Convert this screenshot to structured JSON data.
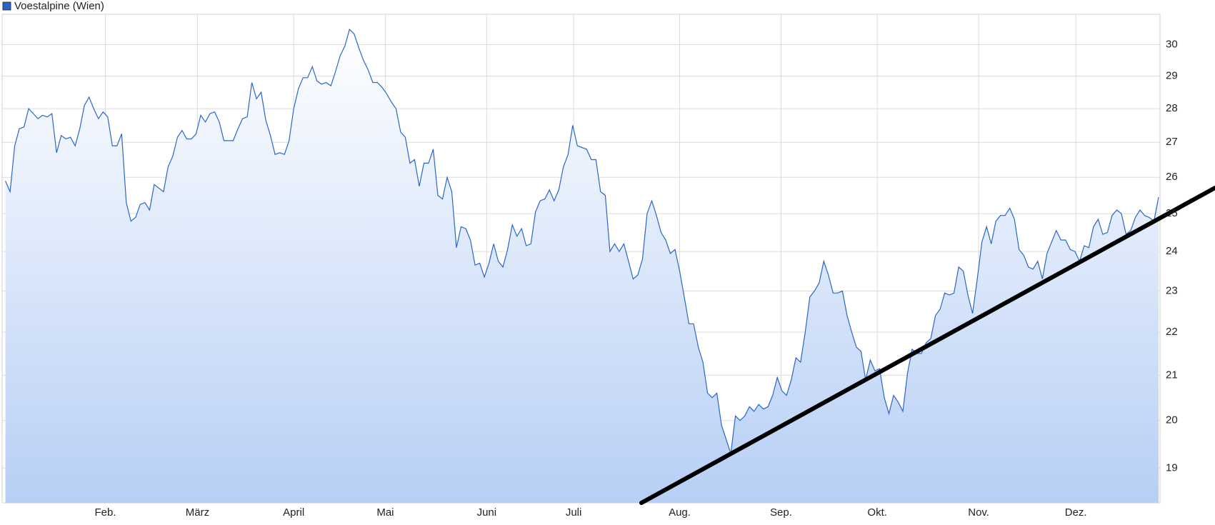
{
  "chart_data": {
    "type": "line",
    "series": [
      {
        "name": "Voestalpine (Wien)",
        "color": "#2a66c8",
        "values": [
          25.9,
          25.6,
          26.9,
          27.4,
          27.45,
          28.0,
          27.85,
          27.7,
          27.8,
          27.75,
          27.85,
          26.7,
          27.2,
          27.1,
          27.15,
          26.9,
          27.4,
          28.1,
          28.35,
          28.0,
          27.7,
          27.9,
          27.75,
          26.9,
          26.9,
          27.25,
          25.3,
          24.8,
          24.9,
          25.25,
          25.3,
          25.1,
          25.8,
          25.7,
          25.6,
          26.3,
          26.6,
          27.15,
          27.35,
          27.1,
          27.1,
          27.25,
          27.8,
          27.6,
          27.85,
          27.9,
          27.6,
          27.05,
          27.05,
          27.05,
          27.4,
          27.7,
          27.75,
          28.8,
          28.3,
          28.5,
          27.65,
          27.2,
          26.65,
          26.7,
          26.65,
          27.05,
          28.0,
          28.6,
          28.95,
          28.95,
          29.3,
          28.85,
          28.75,
          28.8,
          28.7,
          29.15,
          29.65,
          29.95,
          30.5,
          30.35,
          29.9,
          29.5,
          29.2,
          28.8,
          28.8,
          28.65,
          28.45,
          28.2,
          28.0,
          27.3,
          27.15,
          26.4,
          26.5,
          25.75,
          26.4,
          26.4,
          26.8,
          25.5,
          25.4,
          26.0,
          25.6,
          24.1,
          24.65,
          24.6,
          24.3,
          23.65,
          23.7,
          23.35,
          23.7,
          24.2,
          23.75,
          23.6,
          24.05,
          24.7,
          24.4,
          24.6,
          24.15,
          24.2,
          25.05,
          25.35,
          25.4,
          25.65,
          25.35,
          25.65,
          26.3,
          26.65,
          27.5,
          26.9,
          26.85,
          26.8,
          26.5,
          26.5,
          25.6,
          25.5,
          24.0,
          24.2,
          24.0,
          24.2,
          23.75,
          23.3,
          23.4,
          23.8,
          25.0,
          25.35,
          24.95,
          24.5,
          24.3,
          23.95,
          24.05,
          23.5,
          22.85,
          22.2,
          22.2,
          21.65,
          21.3,
          20.6,
          20.5,
          20.6,
          19.9,
          19.6,
          19.3,
          20.1,
          20.0,
          20.1,
          20.3,
          20.2,
          20.35,
          20.25,
          20.3,
          20.55,
          20.95,
          20.65,
          20.55,
          20.9,
          21.4,
          21.3,
          22.0,
          22.85,
          23.0,
          23.2,
          23.75,
          23.4,
          22.95,
          22.95,
          23.0,
          22.4,
          22.0,
          21.65,
          21.55,
          20.9,
          21.35,
          21.1,
          21.15,
          20.5,
          20.15,
          20.55,
          20.4,
          20.2,
          21.05,
          21.6,
          21.5,
          21.5,
          21.75,
          21.85,
          22.4,
          22.55,
          22.95,
          22.9,
          22.95,
          23.6,
          23.5,
          22.9,
          22.45,
          23.3,
          24.25,
          24.65,
          24.2,
          24.8,
          24.95,
          24.95,
          25.15,
          24.85,
          24.05,
          23.9,
          23.6,
          23.55,
          23.75,
          23.3,
          23.95,
          24.25,
          24.55,
          24.3,
          24.3,
          24.05,
          24.0,
          23.75,
          24.15,
          24.1,
          24.65,
          24.85,
          24.45,
          24.5,
          24.95,
          25.1,
          25.0,
          24.45,
          24.55,
          24.9,
          25.1,
          24.95,
          24.9,
          24.8,
          25.45
        ]
      }
    ],
    "xlim": [
      -0.7,
      248.3
    ],
    "xticks": [
      {
        "value": 21.5,
        "label": "Feb."
      },
      {
        "value": 41.3,
        "label": "März"
      },
      {
        "value": 62.0,
        "label": "April"
      },
      {
        "value": 81.7,
        "label": "Mai"
      },
      {
        "value": 103.5,
        "label": "Juni"
      },
      {
        "value": 122.2,
        "label": "Juli"
      },
      {
        "value": 145.0,
        "label": "Aug."
      },
      {
        "value": 166.8,
        "label": "Sep."
      },
      {
        "value": 187.5,
        "label": "Okt."
      },
      {
        "value": 209.3,
        "label": "Nov."
      },
      {
        "value": 230.2,
        "label": "Dez."
      }
    ],
    "ylim": [
      18.3,
      31.0
    ],
    "yticks": [
      19,
      20,
      21,
      22,
      23,
      24,
      25,
      26,
      27,
      28,
      29,
      30
    ],
    "log_scale_y": true,
    "grid": true,
    "legend": "top-left"
  }
}
